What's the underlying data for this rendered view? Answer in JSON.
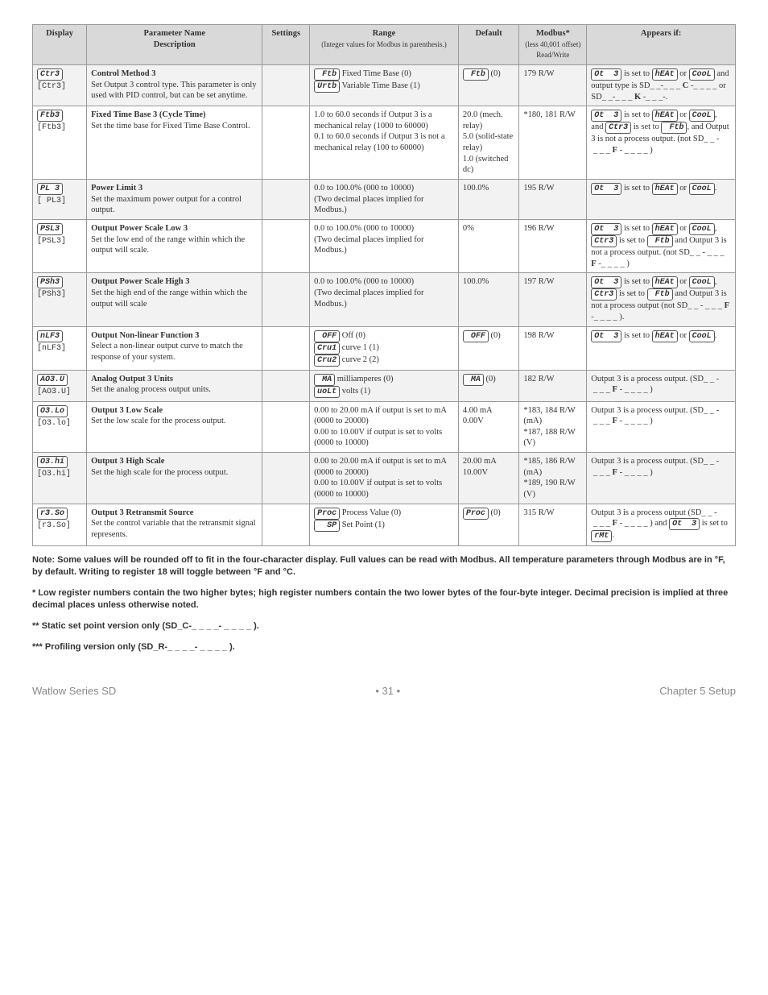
{
  "headers": {
    "display": "Display",
    "pname": "Parameter Name",
    "pdesc": "Description",
    "settings": "Settings",
    "range": "Range",
    "range_sub": "(Integer values for Modbus in parenthesis.)",
    "default": "Default",
    "modbus": "Modbus*",
    "modbus_sub": "(less 40,001 offset) Read/Write",
    "appears": "Appears if:"
  },
  "rows": [
    {
      "seg": "Ctr3",
      "code": "[Ctr3]",
      "name": "Control Method 3",
      "desc": "Set Output 3 control type. This parameter is only used with PID control, but can be set anytime.",
      "range_html": "<span class='seg'>&nbsp;Ftb</span> Fixed Time Base (0)<br><span class='seg'>Urtb</span> Variable Time Base (1)",
      "default_html": "<span class='seg'>&nbsp;Ftb</span> (0)",
      "modbus": "179 R/W",
      "appears_html": "<span class='seg'>Ot&nbsp;&nbsp;3</span> is set to <span class='seg'>hEAt</span> or <span class='seg'>CooL</span> and output type is SD_&nbsp;_-_&nbsp;_&nbsp;_ <b>C</b> -_ _&nbsp;_&nbsp;_ or SD_&nbsp;_-_&nbsp;_&nbsp;_ <b>K</b> -_ _&nbsp;_-."
    },
    {
      "seg": "Ftb3",
      "code": "[Ftb3]",
      "name": "Fixed Time Base 3 (Cycle Time)",
      "desc": "Set the time base for Fixed Time Base Control.",
      "range_html": "1.0 to 60.0 seconds if Output 3 is a mechanical relay (1000 to 60000)<br>0.1 to 60.0 seconds if Output 3 is not a mechanical relay (100 to 60000)",
      "default_html": "20.0 (mech. relay)<br>5.0 (solid-state relay)<br>1.0 (switched dc)",
      "modbus": "*180, 181 R/W",
      "appears_html": "<span class='seg'>Ot&nbsp;&nbsp;3</span> is set to <span class='seg'>hEAt</span> or <span class='seg'>CooL</span>, and <span class='seg'>Ctr3</span> is set to <span class='seg'>&nbsp;Ftb</span>, and Output 3 is not a process output. (not SD_&nbsp;_ -&nbsp;_&nbsp;_&nbsp;_ <b>F</b> -&nbsp;_&nbsp;_&nbsp;_&nbsp;_ )"
    },
    {
      "seg": "PL 3",
      "code": "[ PL3]",
      "name": "Power Limit 3",
      "desc": "Set the maximum power output for a control output.",
      "range_html": "0.0 to 100.0% (000 to 10000)<br>(Two decimal places implied for Modbus.)",
      "default_html": "100.0%",
      "modbus": "195 R/W",
      "appears_html": "<span class='seg'>Ot&nbsp;&nbsp;3</span> is set to <span class='seg'>hEAt</span> or <span class='seg'>CooL</span>."
    },
    {
      "seg": "PSL3",
      "code": "[PSL3]",
      "name": "Output Power Scale Low 3",
      "desc": "Set the low end of the range within which the output will scale.",
      "range_html": "0.0 to 100.0% (000 to 10000)<br>(Two decimal places implied for Modbus.)",
      "default_html": "0%",
      "modbus": "196 R/W",
      "appears_html": "<span class='seg'>Ot&nbsp;&nbsp;3</span> is set to <span class='seg'>hEAt</span> or <span class='seg'>CooL</span>, <span class='seg'>Ctr3</span> is set to <span class='seg'>&nbsp;Ftb</span> and Output 3 is not a process output. (not SD_&nbsp;_ -&nbsp;_&nbsp;_&nbsp;_ <b>F</b> -_ _&nbsp;_&nbsp;_ )"
    },
    {
      "seg": "PSh3",
      "code": "[PSh3]",
      "name": "Output Power Scale High 3",
      "desc": "Set the high end of the range within which the output will scale",
      "range_html": "0.0 to 100.0% (000 to 10000)<br>(Two decimal places implied for Modbus.)",
      "default_html": "100.0%",
      "modbus": "197 R/W",
      "appears_html": "<span class='seg'>Ot&nbsp;&nbsp;3</span> is set to <span class='seg'>hEAt</span> or <span class='seg'>CooL</span>, <span class='seg'>Ctr3</span> is set to <span class='seg'>&nbsp;Ftb</span> and Output 3 is not a process output (not SD_&nbsp;_ -&nbsp;_&nbsp;_&nbsp;_ <b>F</b> -_&nbsp;_ _&nbsp;_ )."
    },
    {
      "seg": "nLF3",
      "code": "[nLF3]",
      "name": "Output Non-linear Function 3",
      "desc": "Select a non-linear output curve to match the response of your system.",
      "range_html": "<span class='seg'>&nbsp;OFF</span> Off (0)<br><span class='seg'>Cru1</span> curve 1 (1)<br><span class='seg'>Cru2</span> curve 2 (2)",
      "default_html": "<span class='seg'>&nbsp;OFF</span> (0)",
      "modbus": "198 R/W",
      "appears_html": "<span class='seg'>Ot&nbsp;&nbsp;3</span> is set to <span class='seg'>hEAt</span> or <span class='seg'>CooL</span>."
    },
    {
      "seg": "AO3.U",
      "code": "[AO3.U]",
      "name": "Analog Output 3 Units",
      "desc": "Set the analog process output units.",
      "range_html": "<span class='seg'>&nbsp;MA</span> milliamperes (0)<br><span class='seg'>uoLt</span> volts (1)",
      "default_html": "<span class='seg'>&nbsp;MA</span> (0)",
      "modbus": "182 R/W",
      "appears_html": "Output 3 is a process output. (SD_&nbsp;_ -&nbsp;_&nbsp;_&nbsp;_ <b>F</b> -&nbsp;_&nbsp;_&nbsp;_&nbsp;_ )"
    },
    {
      "seg": "O3.Lo",
      "code": "[O3.lo]",
      "name": "Output 3 Low Scale",
      "desc": "Set the low scale for the process output.",
      "range_html": "0.00 to 20.00 mA if output is set to mA (0000 to 20000)<br>0.00 to 10.00V if output is set to volts (0000 to 10000)",
      "default_html": "4.00 mA<br>0.00V",
      "modbus": "*183, 184 R/W (mA)\n*187, 188 R/W (V)",
      "appears_html": "Output 3 is a process output. (SD_&nbsp;_ -&nbsp;_&nbsp;_&nbsp;_ <b>F</b> -&nbsp;_&nbsp;_&nbsp;_&nbsp;_ )"
    },
    {
      "seg": "O3.hi",
      "code": "[O3.hi]",
      "name": "Output 3 High Scale",
      "desc": "Set the high scale for the process output.",
      "range_html": "0.00 to 20.00 mA if output is set to mA (0000 to 20000)<br>0.00 to 10.00V if output is set to volts (0000 to 10000)",
      "default_html": "20.00 mA<br>10.00V",
      "modbus": "*185, 186 R/W (mA)\n*189, 190 R/W (V)",
      "appears_html": "Output 3 is a process output. (SD_&nbsp;_ -&nbsp;_&nbsp;_&nbsp;_ <b>F</b> -&nbsp;_&nbsp;_&nbsp;_&nbsp;_ )"
    },
    {
      "seg": "r3.So",
      "code": "[r3.So]",
      "name": "Output 3 Retransmit Source",
      "desc": "Set the control variable that the retransmit signal represents.",
      "range_html": "<span class='seg'>Proc</span> Process Value (0)<br><span class='seg'>&nbsp;&nbsp;SP</span> Set Point (1)",
      "default_html": "<span class='seg'>Proc</span> (0)",
      "modbus": "315 R/W",
      "appears_html": "Output 3 is a process output (SD_&nbsp;_ -&nbsp;_&nbsp;_&nbsp;_ <b>F</b> -&nbsp;_&nbsp;_&nbsp;_&nbsp;_ ) and <span class='seg'>Ot&nbsp;&nbsp;3</span> is set to <span class='seg'>rMt</span>."
    }
  ],
  "notes": {
    "n1": "Note: Some values will be rounded off to fit in the four-character display. Full values can be read with Modbus. All temperature parameters through Modbus are in °F, by default. Writing to register 18 will toggle between °F and °C.",
    "n2": "* Low register numbers contain the two higher bytes; high register numbers contain the two lower bytes of the four-byte integer. Decimal precision is implied at three decimal places unless otherwise noted.",
    "n3": "** Static set point version only (SD_C-_ _ _ _- _ _ _ _ ).",
    "n4": "*** Profiling version only (SD_R-_ _ _ _- _ _ _ _ )."
  },
  "footer": {
    "left": "Watlow Series SD",
    "center": "• 31 •",
    "right": "Chapter 5 Setup"
  }
}
